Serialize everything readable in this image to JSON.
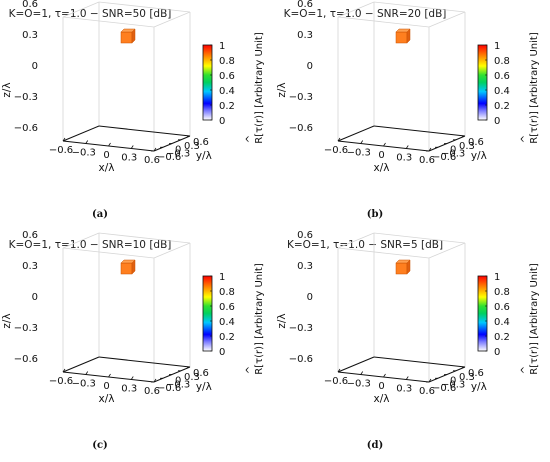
{
  "chart_data": [
    {
      "type": "scatter3d",
      "title": "K=O=1, τ=1.0 − SNR=50 [dB]",
      "caption": "(a)",
      "xlabel": "x/λ",
      "ylabel": "y/λ",
      "zlabel": "z/λ",
      "xticks": [
        "−0.6",
        "−0.3",
        "0",
        "0.3",
        "0.6"
      ],
      "yticks": [
        "−0.6",
        "−0.3",
        "0",
        "0.3",
        "0.6"
      ],
      "zticks": [
        "0.6",
        "0.3",
        "0",
        "−0.3",
        "−0.6"
      ],
      "xlim": [
        -0.6,
        0.6
      ],
      "ylim": [
        -0.6,
        0.6
      ],
      "zlim": [
        -0.6,
        0.6
      ],
      "colorbar": {
        "label": "R[τ(r)] [Arbitrary Unit]",
        "ticks": [
          "1",
          "0.8",
          "0.6",
          "0.4",
          "0.2",
          "0"
        ],
        "range": [
          0,
          1
        ]
      },
      "points": [
        {
          "x": 0,
          "y": 0,
          "z": 0.3,
          "value": 0.8,
          "color": "#ff7f1f"
        }
      ]
    },
    {
      "type": "scatter3d",
      "title": "K=O=1, τ=1.0 − SNR=20 [dB]",
      "caption": "(b)",
      "xlabel": "x/λ",
      "ylabel": "y/λ",
      "zlabel": "z/λ",
      "xticks": [
        "−0.6",
        "−0.3",
        "0",
        "0.3",
        "0.6"
      ],
      "yticks": [
        "−0.6",
        "−0.3",
        "0",
        "0.3",
        "0.6"
      ],
      "zticks": [
        "0.6",
        "0.3",
        "0",
        "−0.3",
        "−0.6"
      ],
      "xlim": [
        -0.6,
        0.6
      ],
      "ylim": [
        -0.6,
        0.6
      ],
      "zlim": [
        -0.6,
        0.6
      ],
      "colorbar": {
        "label": "R[τ(r)] [Arbitrary Unit]",
        "ticks": [
          "1",
          "0.8",
          "0.6",
          "0.4",
          "0.2",
          "0"
        ],
        "range": [
          0,
          1
        ]
      },
      "points": [
        {
          "x": 0,
          "y": 0,
          "z": 0.3,
          "value": 0.8,
          "color": "#ff7f1f"
        }
      ]
    },
    {
      "type": "scatter3d",
      "title": "K=O=1, τ=1.0 − SNR=10 [dB]",
      "caption": "(c)",
      "xlabel": "x/λ",
      "ylabel": "y/λ",
      "zlabel": "z/λ",
      "xticks": [
        "−0.6",
        "−0.3",
        "0",
        "0.3",
        "0.6"
      ],
      "yticks": [
        "−0.6",
        "−0.3",
        "0",
        "0.3",
        "0.6"
      ],
      "zticks": [
        "0.6",
        "0.3",
        "0",
        "−0.3",
        "−0.6"
      ],
      "xlim": [
        -0.6,
        0.6
      ],
      "ylim": [
        -0.6,
        0.6
      ],
      "zlim": [
        -0.6,
        0.6
      ],
      "colorbar": {
        "label": "R[τ(r)] [Arbitrary Unit]",
        "ticks": [
          "1",
          "0.8",
          "0.6",
          "0.4",
          "0.2",
          "0"
        ],
        "range": [
          0,
          1
        ]
      },
      "points": [
        {
          "x": 0,
          "y": 0,
          "z": 0.3,
          "value": 0.8,
          "color": "#ff7f1f"
        }
      ]
    },
    {
      "type": "scatter3d",
      "title": "K=O=1, τ=1.0 − SNR=5 [dB]",
      "caption": "(d)",
      "xlabel": "x/λ",
      "ylabel": "y/λ",
      "zlabel": "z/λ",
      "xticks": [
        "−0.6",
        "−0.3",
        "0",
        "0.3",
        "0.6"
      ],
      "yticks": [
        "−0.6",
        "−0.3",
        "0",
        "0.3",
        "0.6"
      ],
      "zticks": [
        "0.6",
        "0.3",
        "0",
        "−0.3",
        "−0.6"
      ],
      "xlim": [
        -0.6,
        0.6
      ],
      "ylim": [
        -0.6,
        0.6
      ],
      "zlim": [
        -0.6,
        0.6
      ],
      "colorbar": {
        "label": "R[τ(r)] [Arbitrary Unit]",
        "ticks": [
          "1",
          "0.8",
          "0.6",
          "0.4",
          "0.2",
          "0"
        ],
        "range": [
          0,
          1
        ]
      },
      "points": [
        {
          "x": 0,
          "y": 0,
          "z": 0.3,
          "value": 0.8,
          "color": "#ff7f1f"
        }
      ]
    }
  ]
}
